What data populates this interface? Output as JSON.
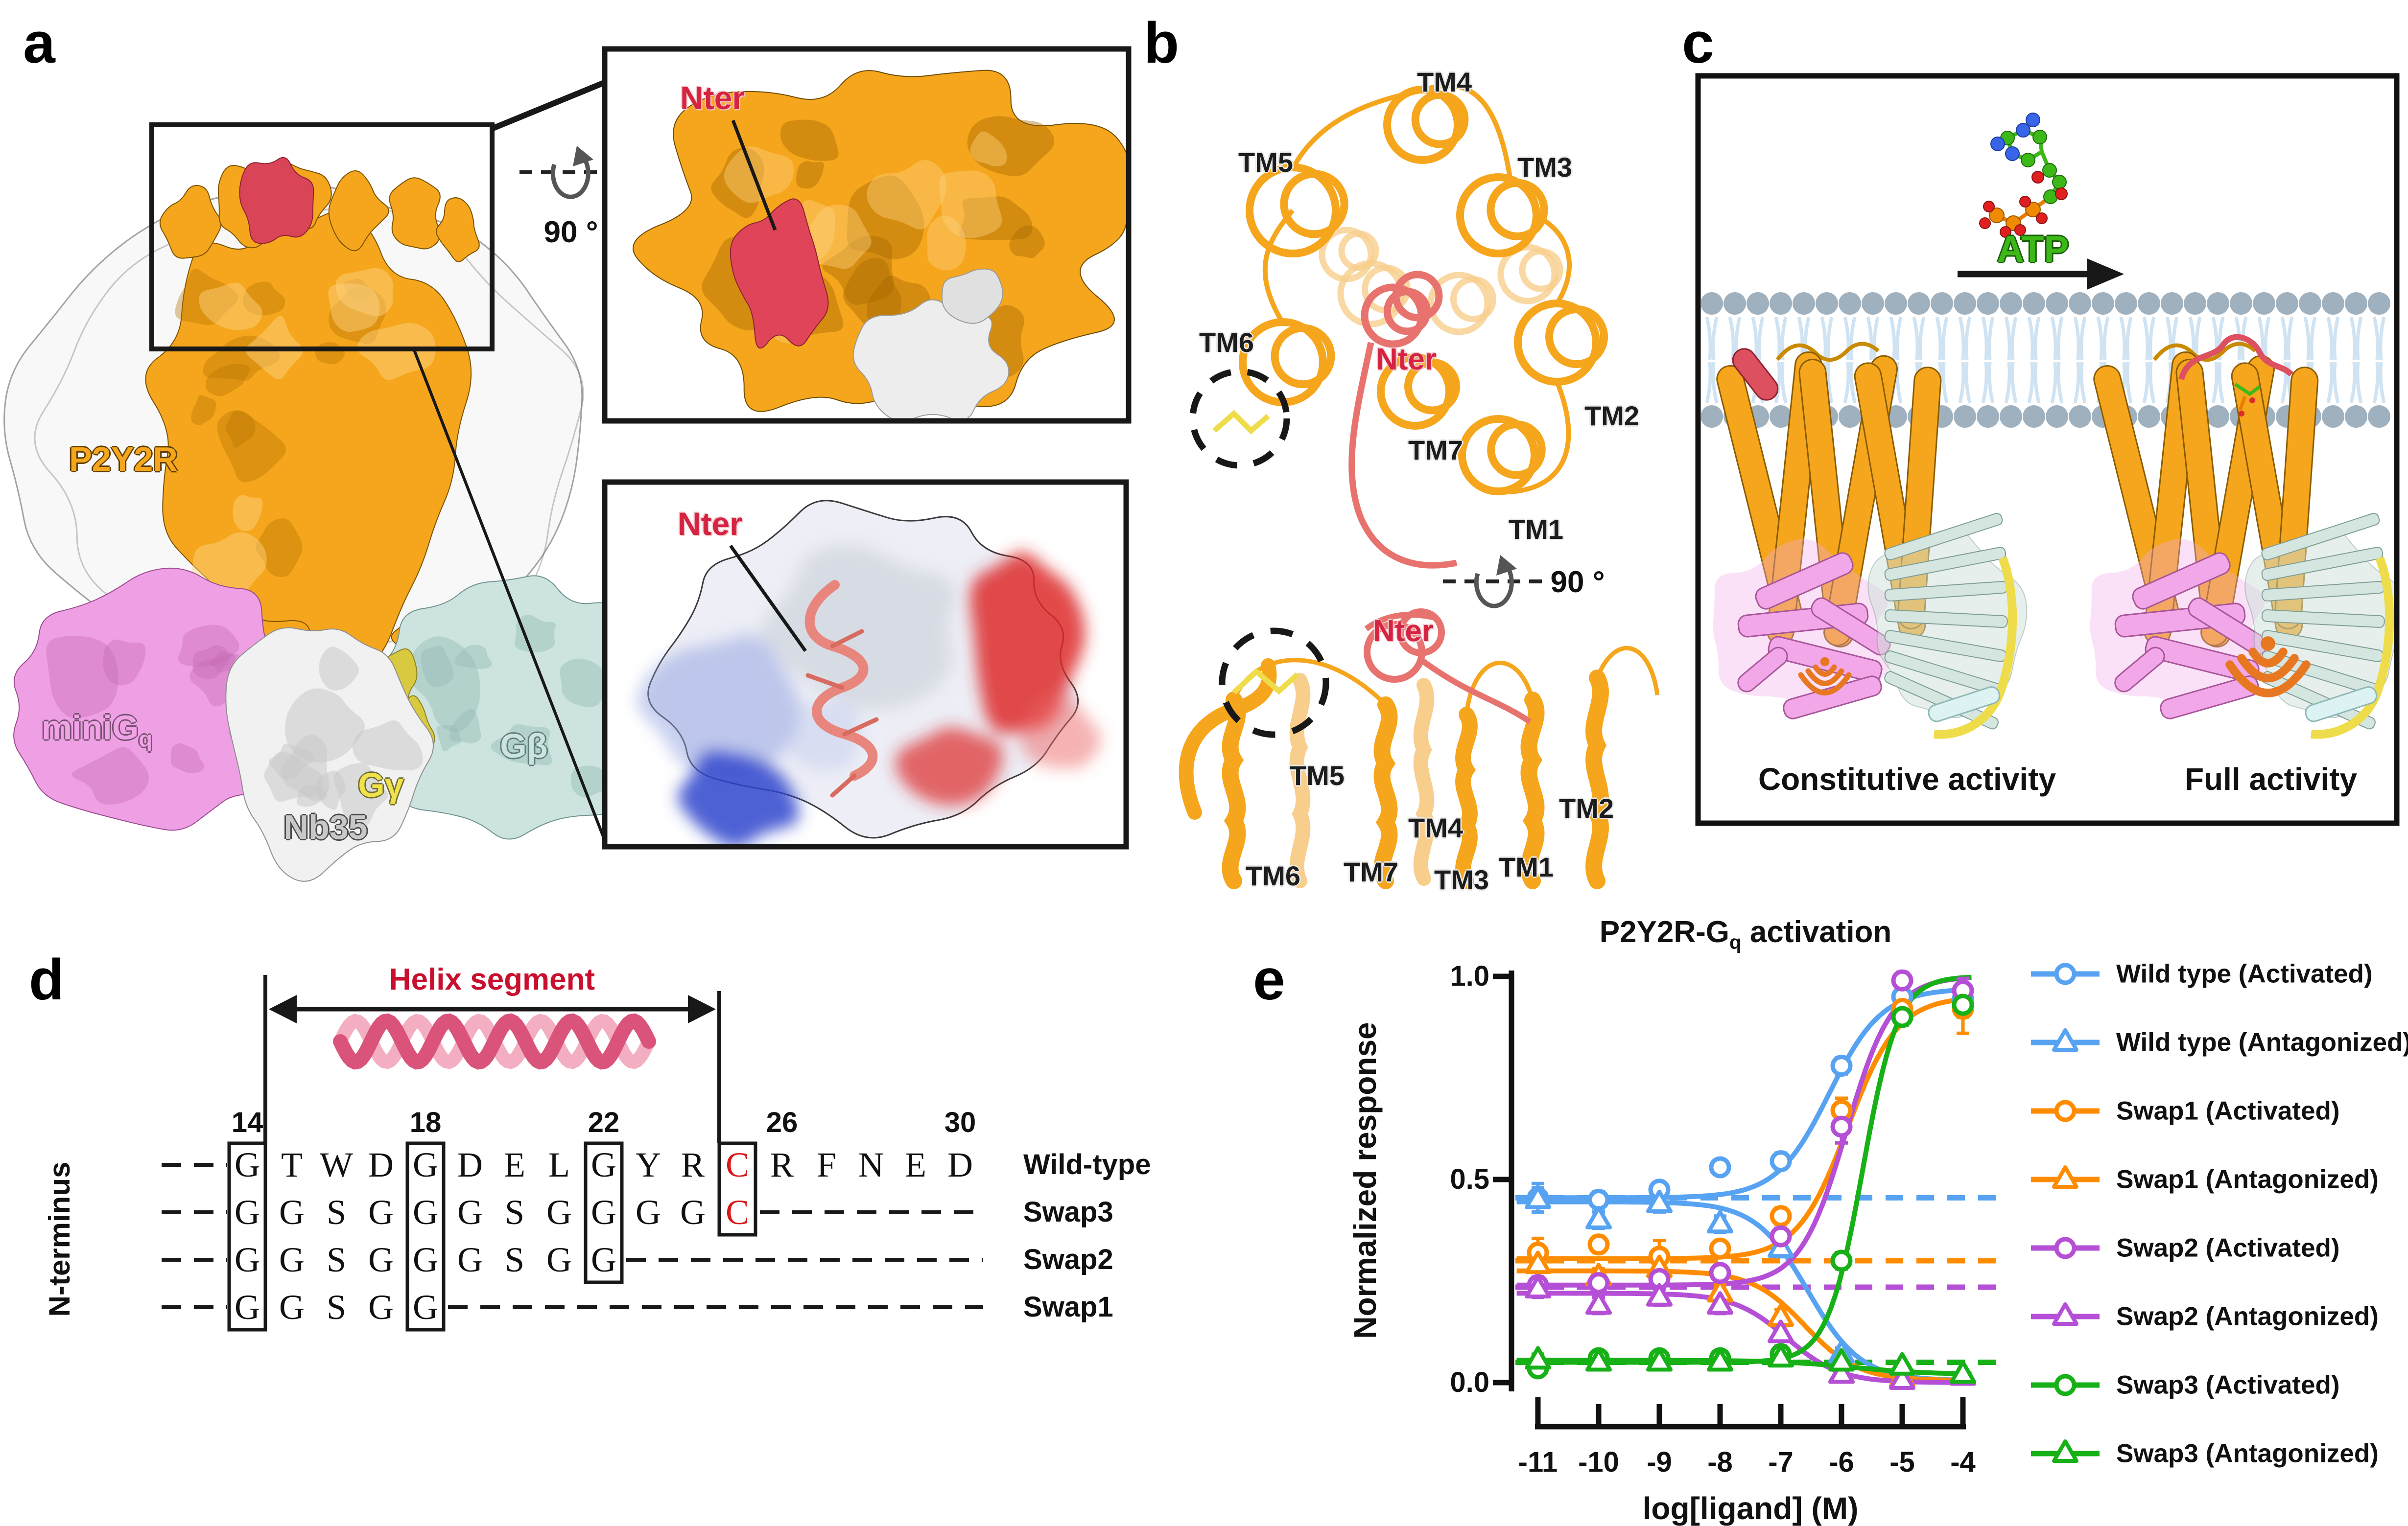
{
  "panel_a": {
    "label": "a",
    "receptor_label": "P2Y2R",
    "minig_label": {
      "base": "miniG",
      "sub": "q"
    },
    "ggamma_label": "Gγ",
    "gbeta_label": "Gβ",
    "nb35_label": "Nb35",
    "rotation_label": "90 °",
    "inset_top_label": "Nter",
    "inset_bottom_label": "Nter",
    "colors": {
      "receptor": "#F5A61C",
      "nter": "#D94456",
      "minig": "#EFA0E4",
      "gbeta": "#CDE3DF",
      "ggamma": "#D9C93F",
      "nb35": "#F1F1F1"
    }
  },
  "panel_b": {
    "label": "b",
    "rotation_label": "90 °",
    "top_view_labels": [
      {
        "text": "TM4"
      },
      {
        "text": "TM5"
      },
      {
        "text": "TM3"
      },
      {
        "text": "TM6"
      },
      {
        "text": "Nter"
      },
      {
        "text": "TM2"
      },
      {
        "text": "TM7"
      },
      {
        "text": "TM1"
      }
    ],
    "bottom_view_labels": [
      {
        "text": "Nter"
      },
      {
        "text": "TM5"
      },
      {
        "text": "TM4"
      },
      {
        "text": "TM2"
      },
      {
        "text": "TM7"
      },
      {
        "text": "TM6"
      },
      {
        "text": "TM3"
      },
      {
        "text": "TM1"
      }
    ]
  },
  "panel_c": {
    "label": "c",
    "atp_label": "ATP",
    "left_caption": "Constitutive activity",
    "right_caption": "Full activity",
    "signal_color": "#E87722"
  },
  "panel_d": {
    "label": "d",
    "header": "Helix segment",
    "side_label": "N-terminus",
    "positions": [
      {
        "label": "14",
        "col": 0
      },
      {
        "label": "18",
        "col": 4
      },
      {
        "label": "22",
        "col": 8
      },
      {
        "label": "26",
        "col": 12
      },
      {
        "label": "30",
        "col": 16
      }
    ],
    "rows": [
      {
        "name": "Wild-type",
        "letters": [
          "G",
          "T",
          "W",
          "D",
          "G",
          "D",
          "E",
          "L",
          "G",
          "Y",
          "R",
          "C",
          "R",
          "F",
          "N",
          "E",
          "D"
        ],
        "red_cols": [
          11
        ],
        "trailing_dashes": false
      },
      {
        "name": "Swap3",
        "letters": [
          "G",
          "G",
          "S",
          "G",
          "G",
          "G",
          "S",
          "G",
          "G",
          "G",
          "G",
          "C"
        ],
        "red_cols": [
          11
        ],
        "trailing_dashes": true
      },
      {
        "name": "Swap2",
        "letters": [
          "G",
          "G",
          "S",
          "G",
          "G",
          "G",
          "S",
          "G",
          "G"
        ],
        "red_cols": [],
        "trailing_dashes": true
      },
      {
        "name": "Swap1",
        "letters": [
          "G",
          "G",
          "S",
          "G",
          "G"
        ],
        "red_cols": [],
        "trailing_dashes": true
      }
    ],
    "boxes": [
      {
        "col": 0,
        "row_span": 4
      },
      {
        "col": 4,
        "row_span": 4
      },
      {
        "col": 8,
        "row_span": 3
      },
      {
        "col": 11,
        "row_span": 2
      }
    ]
  },
  "panel_e": {
    "label": "e",
    "chart_data": {
      "type": "line",
      "title": {
        "main": "P2Y2R-G",
        "sub": "q",
        "rest": " activation"
      },
      "xlabel": "log[ligand] (M)",
      "ylabel": "Normalized response",
      "x_ticks": [
        -11,
        -10,
        -9,
        -8,
        -7,
        -6,
        -5,
        -4
      ],
      "y_ticks": [
        0.0,
        0.5,
        1.0
      ],
      "ylim": [
        0,
        1
      ],
      "x": [
        -11,
        -10,
        -9,
        -8,
        -7,
        -6,
        -5,
        -4
      ],
      "grid": false,
      "legend_position": "right",
      "series": [
        {
          "name": "Wild type (Activated)",
          "color": "#57A3F2",
          "marker": "circle",
          "values": [
            0.455,
            0.45,
            0.475,
            0.53,
            0.545,
            0.78,
            0.95,
            0.945
          ],
          "err": [
            0.035,
            0.02,
            0.015,
            0.015,
            0.02,
            0.02,
            0.015,
            0.03
          ],
          "fit": {
            "bottom": 0.455,
            "top": 0.97,
            "log50": -6.2,
            "hill": 1.0,
            "decreasing": false
          }
        },
        {
          "name": "Wild type (Antagonized)",
          "color": "#57A3F2",
          "marker": "triangle",
          "values": [
            0.45,
            0.4,
            0.44,
            0.39,
            0.33,
            0.07,
            0.04,
            0.02
          ],
          "err": [
            0.03,
            0.02,
            0.02,
            0.02,
            0.02,
            0.015,
            0.01,
            0.01
          ],
          "fit": {
            "bottom": 0.005,
            "top": 0.445,
            "log50": -6.55,
            "hill": 1.0,
            "decreasing": true
          }
        },
        {
          "name": "Swap1 (Activated)",
          "color": "#FF8C00",
          "marker": "circle",
          "values": [
            0.32,
            0.34,
            0.31,
            0.33,
            0.41,
            0.67,
            0.92,
            0.92
          ],
          "err": [
            0.035,
            0.02,
            0.04,
            0.02,
            0.02,
            0.03,
            0.02,
            0.06
          ],
          "fit": {
            "bottom": 0.305,
            "top": 0.95,
            "log50": -5.9,
            "hill": 1.05,
            "decreasing": false
          }
        },
        {
          "name": "Swap1 (Antagonized)",
          "color": "#FF8C00",
          "marker": "triangle",
          "values": [
            0.29,
            0.26,
            0.28,
            0.22,
            0.16,
            0.02,
            0.01,
            0.015
          ],
          "err": [
            0.03,
            0.02,
            0.03,
            0.02,
            0.02,
            0.01,
            0.01,
            0.01
          ],
          "fit": {
            "bottom": 0.005,
            "top": 0.275,
            "log50": -6.6,
            "hill": 1.0,
            "decreasing": true
          }
        },
        {
          "name": "Swap2 (Activated)",
          "color": "#B44FD6",
          "marker": "circle",
          "values": [
            0.24,
            0.245,
            0.255,
            0.27,
            0.36,
            0.63,
            0.99,
            0.965
          ],
          "err": [
            0.02,
            0.015,
            0.015,
            0.015,
            0.02,
            0.04,
            0.02,
            0.03
          ],
          "fit": {
            "bottom": 0.24,
            "top": 1.0,
            "log50": -5.92,
            "hill": 1.15,
            "decreasing": false
          }
        },
        {
          "name": "Swap2 (Antagonized)",
          "color": "#B44FD6",
          "marker": "triangle",
          "values": [
            0.23,
            0.19,
            0.21,
            0.19,
            0.12,
            0.02,
            0.005,
            0.015
          ],
          "err": [
            0.02,
            0.02,
            0.02,
            0.02,
            0.03,
            0.01,
            0.01,
            0.01
          ],
          "fit": {
            "bottom": 0.0,
            "top": 0.22,
            "log50": -6.9,
            "hill": 1.0,
            "decreasing": true
          }
        },
        {
          "name": "Swap3 (Activated)",
          "color": "#17B117",
          "marker": "circle",
          "values": [
            0.035,
            0.06,
            0.06,
            0.06,
            0.07,
            0.3,
            0.9,
            0.93
          ],
          "err": [
            0.015,
            0.01,
            0.01,
            0.01,
            0.015,
            0.02,
            0.02,
            0.03
          ],
          "fit": {
            "bottom": 0.05,
            "top": 1.0,
            "log50": -5.65,
            "hill": 1.5,
            "decreasing": false
          }
        },
        {
          "name": "Swap3 (Antagonized)",
          "color": "#17B117",
          "marker": "triangle",
          "values": [
            0.055,
            0.05,
            0.05,
            0.05,
            0.06,
            0.05,
            0.04,
            0.02
          ],
          "err": [
            0.015,
            0.01,
            0.01,
            0.01,
            0.015,
            0.01,
            0.01,
            0.01
          ],
          "fit": {
            "bottom": 0.02,
            "top": 0.055,
            "log50": -5.8,
            "hill": 0.7,
            "decreasing": true
          }
        }
      ],
      "baselines": [
        {
          "color": "#57A3F2",
          "value": 0.455
        },
        {
          "color": "#FF8C00",
          "value": 0.3
        },
        {
          "color": "#B44FD6",
          "value": 0.235
        },
        {
          "color": "#17B117",
          "value": 0.05
        }
      ]
    }
  }
}
